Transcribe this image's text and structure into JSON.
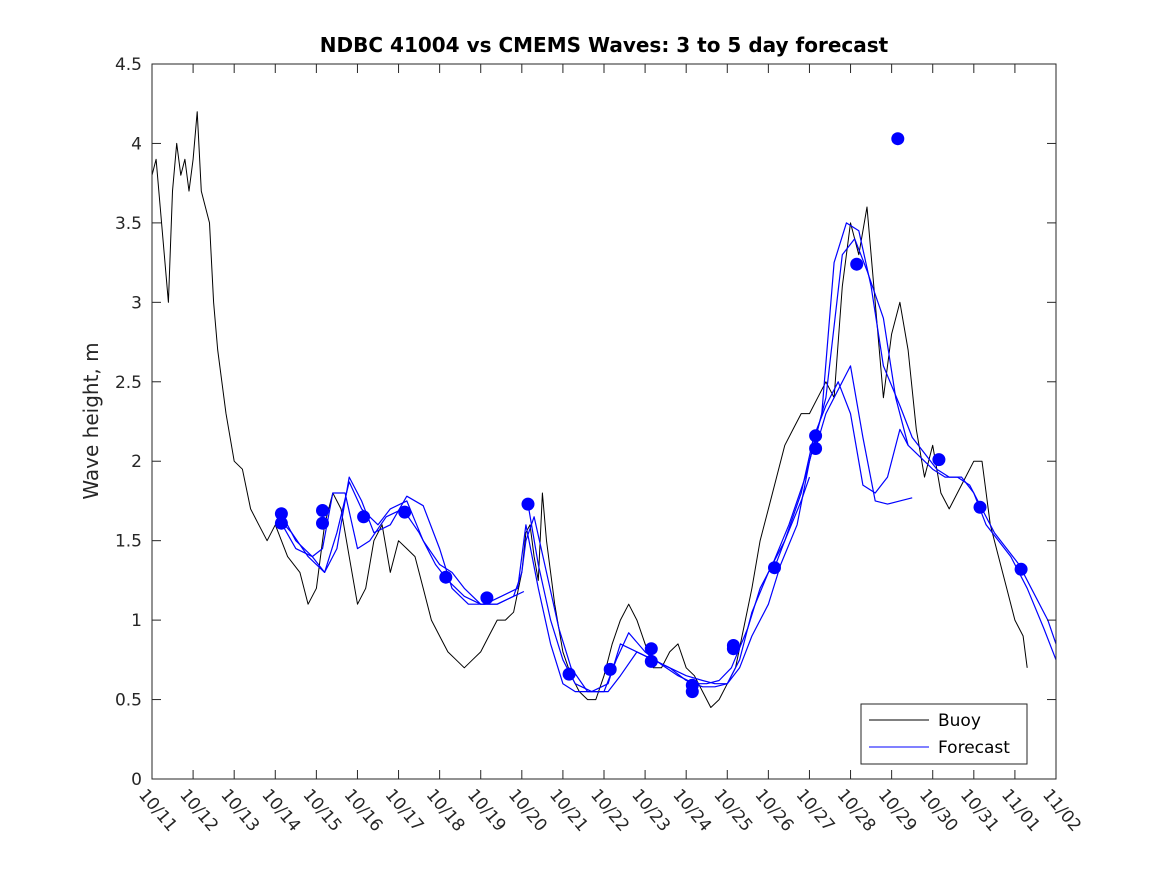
{
  "chart_data": {
    "type": "line",
    "title": "NDBC 41004 vs CMEMS Waves: 3 to 5 day forecast",
    "xlabel": "",
    "ylabel": "Wave height, m",
    "x_unit": "days since 10/11",
    "xlim": [
      0,
      22
    ],
    "ylim": [
      0,
      4.5
    ],
    "xticks": [
      0,
      1,
      2,
      3,
      4,
      5,
      6,
      7,
      8,
      9,
      10,
      11,
      12,
      13,
      14,
      15,
      16,
      17,
      18,
      19,
      20,
      21,
      22
    ],
    "xtick_labels": [
      "10/11",
      "10/12",
      "10/13",
      "10/14",
      "10/15",
      "10/16",
      "10/17",
      "10/18",
      "10/19",
      "10/20",
      "10/21",
      "10/22",
      "10/23",
      "10/24",
      "10/25",
      "10/26",
      "10/27",
      "10/28",
      "10/29",
      "10/30",
      "10/31",
      "11/01",
      "11/02"
    ],
    "yticks": [
      0,
      0.5,
      1,
      1.5,
      2,
      2.5,
      3,
      3.5,
      4,
      4.5
    ],
    "ytick_labels": [
      "0",
      "0.5",
      "1",
      "1.5",
      "2",
      "2.5",
      "3",
      "3.5",
      "4",
      "4.5"
    ],
    "grid": false,
    "legend": {
      "position": "bottom-right",
      "entries": [
        "Buoy",
        "Forecast"
      ]
    },
    "colors": {
      "buoy": "#000000",
      "forecast": "#0000ff"
    },
    "buoy": {
      "name": "Buoy",
      "x": [
        0,
        0.1,
        0.2,
        0.3,
        0.4,
        0.5,
        0.6,
        0.7,
        0.8,
        0.9,
        1.0,
        1.1,
        1.2,
        1.3,
        1.4,
        1.5,
        1.6,
        1.8,
        2.0,
        2.2,
        2.4,
        2.6,
        2.8,
        3.0,
        3.3,
        3.6,
        3.8,
        4.0,
        4.2,
        4.4,
        4.6,
        4.8,
        5.0,
        5.2,
        5.4,
        5.6,
        5.8,
        6.0,
        6.2,
        6.4,
        6.6,
        6.8,
        7.0,
        7.2,
        7.4,
        7.6,
        7.8,
        8.0,
        8.2,
        8.4,
        8.6,
        8.8,
        9.0,
        9.1,
        9.2,
        9.3,
        9.4,
        9.5,
        9.6,
        9.7,
        9.8,
        10.0,
        10.2,
        10.4,
        10.6,
        10.8,
        11.0,
        11.2,
        11.4,
        11.6,
        11.8,
        12.0,
        12.2,
        12.4,
        12.6,
        12.8,
        13.0,
        13.2,
        13.4,
        13.6,
        13.8,
        14.0,
        14.2,
        14.4,
        14.6,
        14.8,
        15.0,
        15.2,
        15.4,
        15.6,
        15.8,
        16.0,
        16.2,
        16.4,
        16.6,
        16.8,
        17.0,
        17.2,
        17.4,
        17.6,
        17.8,
        18.0,
        18.2,
        18.4,
        18.6,
        18.8,
        19.0,
        19.2,
        19.4,
        19.6,
        19.8,
        20.0,
        20.2,
        20.4,
        20.6,
        20.8,
        21.0,
        21.2,
        21.3
      ],
      "y": [
        3.8,
        3.9,
        3.6,
        3.3,
        3.0,
        3.7,
        4.0,
        3.8,
        3.9,
        3.7,
        3.9,
        4.2,
        3.7,
        3.6,
        3.5,
        3.0,
        2.7,
        2.3,
        2.0,
        1.95,
        1.7,
        1.6,
        1.5,
        1.6,
        1.4,
        1.3,
        1.1,
        1.2,
        1.6,
        1.8,
        1.7,
        1.4,
        1.1,
        1.2,
        1.5,
        1.6,
        1.3,
        1.5,
        1.45,
        1.4,
        1.2,
        1.0,
        0.9,
        0.8,
        0.75,
        0.7,
        0.75,
        0.8,
        0.9,
        1.0,
        1.0,
        1.05,
        1.3,
        1.55,
        1.6,
        1.4,
        1.25,
        1.8,
        1.5,
        1.3,
        1.1,
        0.8,
        0.65,
        0.55,
        0.5,
        0.5,
        0.65,
        0.85,
        1.0,
        1.1,
        1.0,
        0.85,
        0.7,
        0.7,
        0.8,
        0.85,
        0.7,
        0.65,
        0.55,
        0.45,
        0.5,
        0.6,
        0.7,
        0.95,
        1.2,
        1.5,
        1.7,
        1.9,
        2.1,
        2.2,
        2.3,
        2.3,
        2.4,
        2.5,
        2.4,
        3.1,
        3.5,
        3.3,
        3.6,
        3.0,
        2.4,
        2.8,
        3.0,
        2.7,
        2.2,
        1.9,
        2.1,
        1.8,
        1.7,
        1.8,
        1.9,
        2.0,
        2.0,
        1.6,
        1.4,
        1.2,
        1.0,
        0.9,
        0.7
      ]
    },
    "forecast_series": [
      {
        "x": [
          3.15,
          3.5,
          3.9,
          4.2,
          4.5,
          4.8,
          5.1,
          5.5,
          5.8,
          6.2,
          6.6,
          7.0,
          7.3,
          7.6,
          8.0,
          8.4,
          8.8,
          9.0,
          9.1,
          9.3,
          9.6,
          9.9,
          10.2,
          10.6,
          11.0,
          11.3,
          11.6,
          12.0,
          12.4,
          12.8,
          13.2,
          13.5,
          13.8,
          14.1,
          14.5,
          14.8,
          15.1,
          15.5,
          15.9,
          16.3,
          16.6,
          16.9,
          17.2,
          17.5,
          17.8,
          18.2,
          18.5,
          18.8,
          19.1,
          19.4,
          19.7,
          20.0,
          20.3,
          20.6,
          20.9,
          21.3,
          21.7,
          22.0
        ],
        "y": [
          1.67,
          1.5,
          1.4,
          1.3,
          1.55,
          1.87,
          1.7,
          1.6,
          1.7,
          1.75,
          1.5,
          1.35,
          1.3,
          1.2,
          1.1,
          1.1,
          1.15,
          1.3,
          1.5,
          1.65,
          1.3,
          0.95,
          0.7,
          0.55,
          0.55,
          0.75,
          0.92,
          0.8,
          0.72,
          0.65,
          0.6,
          0.6,
          0.62,
          0.7,
          0.95,
          1.2,
          1.35,
          1.6,
          1.9,
          2.3,
          3.25,
          3.5,
          3.45,
          3.1,
          2.6,
          2.35,
          2.15,
          2.05,
          1.95,
          1.9,
          1.9,
          1.8,
          1.6,
          1.5,
          1.4,
          1.2,
          0.95,
          0.75
        ]
      },
      {
        "x": [
          3.15,
          3.4,
          3.8,
          4.2,
          4.5,
          4.8,
          5.1,
          5.4,
          5.8,
          6.2,
          6.6,
          7.0,
          7.3,
          7.7,
          8.1,
          8.5,
          8.9,
          9.1,
          9.4,
          9.7,
          10.0,
          10.3,
          10.7,
          11.1,
          11.4,
          11.8,
          12.2,
          12.6,
          13.0,
          13.4,
          13.7,
          14.0,
          14.3,
          14.6,
          15.0,
          15.3,
          15.7,
          16.0,
          16.4,
          16.8,
          17.1,
          17.4,
          17.8,
          18.1,
          18.4,
          18.8,
          19.0,
          19.3,
          19.6,
          19.9,
          20.2,
          20.5,
          20.8,
          21.1,
          21.4,
          21.8,
          22.0
        ],
        "y": [
          1.62,
          1.55,
          1.4,
          1.3,
          1.45,
          1.9,
          1.75,
          1.55,
          1.6,
          1.78,
          1.72,
          1.45,
          1.2,
          1.1,
          1.1,
          1.15,
          1.2,
          1.6,
          1.2,
          0.85,
          0.6,
          0.55,
          0.55,
          0.6,
          0.85,
          0.8,
          0.75,
          0.7,
          0.62,
          0.58,
          0.58,
          0.6,
          0.7,
          0.9,
          1.1,
          1.35,
          1.6,
          2.0,
          2.4,
          3.3,
          3.4,
          3.2,
          2.9,
          2.4,
          2.1,
          2.0,
          1.95,
          1.9,
          1.9,
          1.85,
          1.7,
          1.55,
          1.45,
          1.35,
          1.2,
          1.0,
          0.85
        ]
      },
      {
        "x": [
          3.15,
          3.5,
          3.9,
          4.15,
          4.4,
          4.7,
          5.0,
          5.3,
          5.7,
          6.1,
          6.5,
          6.9,
          7.2,
          7.6,
          8.0,
          8.4,
          8.8,
          9.05
        ],
        "y": [
          1.61,
          1.45,
          1.4,
          1.45,
          1.8,
          1.8,
          1.45,
          1.5,
          1.65,
          1.7,
          1.55,
          1.35,
          1.25,
          1.15,
          1.1,
          1.1,
          1.15,
          1.18
        ]
      },
      {
        "x": [
          9.15,
          9.4,
          9.7,
          10.0,
          10.3,
          10.7,
          11.1,
          11.4,
          11.8,
          12.2,
          12.6,
          13.0,
          13.4,
          13.7,
          14.0,
          14.3,
          14.6,
          15.0,
          15.4,
          15.8,
          16.0
        ],
        "y": [
          1.73,
          1.35,
          1.0,
          0.75,
          0.6,
          0.55,
          0.55,
          0.65,
          0.8,
          0.75,
          0.7,
          0.65,
          0.62,
          0.6,
          0.6,
          0.75,
          1.05,
          1.3,
          1.5,
          1.75,
          1.9
        ]
      },
      {
        "x": [
          15.15,
          15.4,
          15.8,
          16.1,
          16.4,
          16.7,
          17.0,
          17.3,
          17.6,
          17.9,
          18.2,
          18.4
        ],
        "y": [
          1.33,
          1.5,
          1.8,
          2.15,
          2.35,
          2.5,
          2.3,
          1.85,
          1.8,
          1.9,
          2.2,
          2.1
        ]
      },
      {
        "x": [
          16.15,
          16.4,
          16.7,
          17.0,
          17.3,
          17.6,
          17.9,
          18.2,
          18.5
        ],
        "y": [
          2.08,
          2.3,
          2.45,
          2.6,
          2.15,
          1.75,
          1.73,
          1.75,
          1.77
        ]
      }
    ],
    "forecast_markers": {
      "x": [
        3.15,
        3.15,
        4.15,
        4.15,
        5.15,
        6.15,
        7.15,
        8.15,
        9.15,
        10.15,
        11.15,
        12.15,
        12.15,
        13.15,
        13.15,
        14.15,
        14.15,
        15.15,
        16.15,
        16.15,
        17.15,
        18.15,
        19.15,
        20.15,
        21.15
      ],
      "y": [
        1.67,
        1.61,
        1.69,
        1.61,
        1.65,
        1.68,
        1.27,
        1.14,
        1.73,
        0.66,
        0.69,
        0.82,
        0.74,
        0.59,
        0.55,
        0.82,
        0.84,
        1.33,
        2.16,
        2.08,
        3.24,
        4.03,
        2.01,
        1.71,
        1.32
      ]
    }
  }
}
